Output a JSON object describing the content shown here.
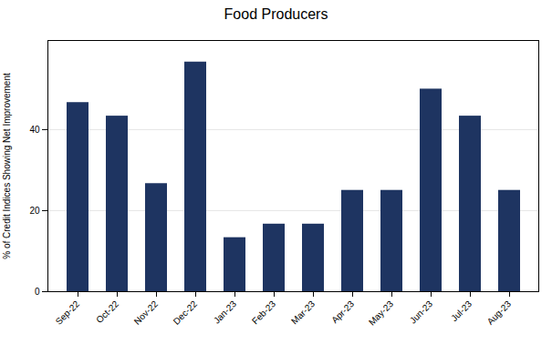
{
  "chart_data": {
    "type": "bar",
    "title": "Food Producers",
    "categories": [
      "Sep-22",
      "Oct-22",
      "Nov-22",
      "Dec-22",
      "Jan-23",
      "Feb-23",
      "Mar-23",
      "Apr-23",
      "May-23",
      "Jun-23",
      "Jul-23",
      "Aug-23"
    ],
    "values": [
      46.67,
      43.33,
      26.67,
      56.67,
      13.33,
      16.67,
      16.67,
      25.0,
      25.0,
      50.0,
      43.33,
      25.0
    ],
    "color": "#1e3461",
    "ylabel": "% of Credit Indices Showing Net Improvement",
    "ylim": [
      0,
      62
    ],
    "yticks": [
      0,
      20,
      40
    ],
    "grid": true
  }
}
